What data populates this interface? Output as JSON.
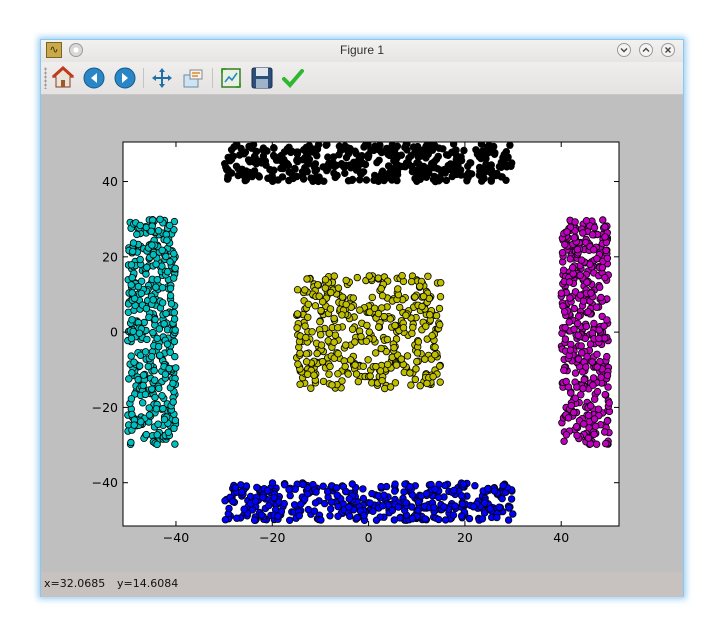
{
  "window": {
    "title": "Figure 1"
  },
  "toolbar": {
    "items": [
      {
        "name": "home-icon",
        "tooltip": "Home"
      },
      {
        "name": "back-icon",
        "tooltip": "Back"
      },
      {
        "name": "forward-icon",
        "tooltip": "Forward"
      },
      {
        "name": "pan-icon",
        "tooltip": "Pan"
      },
      {
        "name": "zoom-icon",
        "tooltip": "Zoom"
      },
      {
        "name": "subplots-icon",
        "tooltip": "Subplots"
      },
      {
        "name": "save-icon",
        "tooltip": "Save"
      },
      {
        "name": "edit-icon",
        "tooltip": "Edit"
      }
    ]
  },
  "status": {
    "x": "x=32.0685",
    "y": "y=14.6084"
  },
  "chart_data": {
    "type": "scatter",
    "title": "",
    "xlabel": "",
    "ylabel": "",
    "xlim": [
      -51,
      52
    ],
    "ylim": [
      -51.5,
      50.5
    ],
    "xticks": [
      -40,
      -20,
      0,
      20,
      40
    ],
    "yticks": [
      -40,
      -20,
      0,
      20,
      40
    ],
    "xtick_labels": [
      "−40",
      "−20",
      "0",
      "20",
      "40"
    ],
    "ytick_labels": [
      "−40",
      "−20",
      "0",
      "20",
      "40"
    ],
    "grid": false,
    "marker": "circle",
    "marker_edge": "#000000",
    "series": [
      {
        "color": "#000000",
        "x_range": [
          -30,
          30
        ],
        "y_range": [
          40,
          50
        ],
        "count": 420
      },
      {
        "color": "#0000ff",
        "x_range": [
          -30,
          30
        ],
        "y_range": [
          -50,
          -40
        ],
        "count": 420
      },
      {
        "color": "#00bfbf",
        "x_range": [
          -50,
          -40
        ],
        "y_range": [
          -30,
          30
        ],
        "count": 420
      },
      {
        "color": "#bf00bf",
        "x_range": [
          40,
          50
        ],
        "y_range": [
          -30,
          30
        ],
        "count": 420
      },
      {
        "color": "#bfbf00",
        "x_range": [
          -15,
          15
        ],
        "y_range": [
          -15,
          15
        ],
        "count": 420
      }
    ]
  }
}
